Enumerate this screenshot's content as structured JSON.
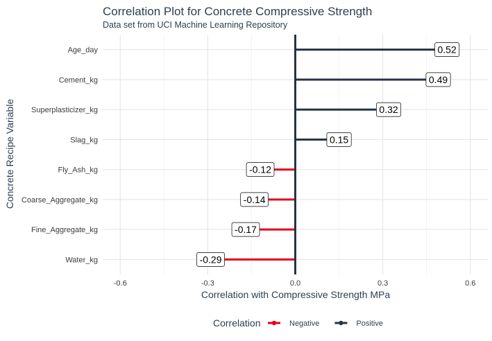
{
  "chart_data": {
    "type": "lollipop",
    "title": "Correlation Plot for Concrete Compressive Strength",
    "subtitle": "Data set from UCI Machine Learning Repository",
    "xlabel": "Correlation with Compressive Strength MPa",
    "ylabel": "Concrete Recipe Variable",
    "xlim": [
      -0.66,
      0.66
    ],
    "x_ticks": [
      -0.6,
      -0.3,
      0.0,
      0.3,
      0.6
    ],
    "x_tick_labels": [
      "-0.6",
      "-0.3",
      "0.0",
      "0.3",
      "0.6"
    ],
    "grid": true,
    "categories": [
      "Age_day",
      "Cement_kg",
      "Superplasticizer_kg",
      "Slag_kg",
      "Fly_Ash_kg",
      "Coarse_Aggregate_kg",
      "Fine_Aggregate_kg",
      "Water_kg"
    ],
    "values": [
      0.52,
      0.49,
      0.32,
      0.15,
      -0.12,
      -0.14,
      -0.17,
      -0.29
    ],
    "value_labels": [
      "0.52",
      "0.49",
      "0.32",
      "0.15",
      "-0.12",
      "-0.14",
      "-0.17",
      "-0.29"
    ],
    "legend": {
      "title": "Correlation",
      "position": "bottom",
      "entries": [
        {
          "label": "Negative",
          "color": "#e3001b"
        },
        {
          "label": "Positive",
          "color": "#253343"
        }
      ]
    },
    "colors": {
      "negative": "#e3001b",
      "positive": "#253343",
      "zero_line": "#253343"
    }
  }
}
